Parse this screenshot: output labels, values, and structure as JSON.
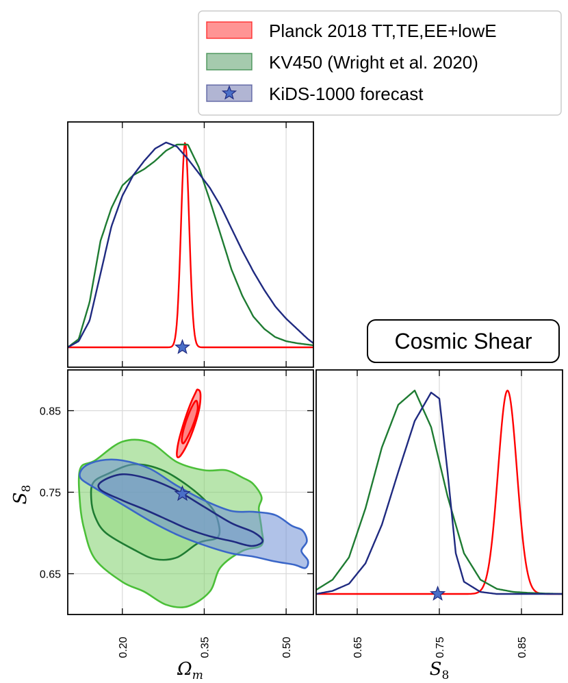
{
  "colors": {
    "planck": "#ff0000",
    "kv450_line": "#1e7b32",
    "kv450_fill": "#7dd06a",
    "kids_line": "#1f2a80",
    "kids_fill": "#6f8fd6",
    "kids_star": "#4a6fc8"
  },
  "chart_data": {
    "type": "corner",
    "title_box": "Cosmic Shear",
    "legend": [
      {
        "label": "Planck 2018 TT,TE,EE+lowE",
        "color": "#ff0000",
        "marker": "patch"
      },
      {
        "label": "KV450 (Wright et al. 2020)",
        "color": "#1e7b32",
        "marker": "patch"
      },
      {
        "label": "KiDS-1000 forecast",
        "color": "#1f2a80",
        "marker": "star"
      }
    ],
    "params": {
      "omega_m": {
        "label": "Ω",
        "sub": "m",
        "range": [
          0.1,
          0.55
        ],
        "ticks": [
          0.2,
          0.35,
          0.5
        ],
        "tick_labels": [
          "0.20",
          "0.35",
          "0.50"
        ]
      },
      "s8": {
        "label": "S",
        "sub": "8",
        "range": [
          0.6,
          0.9
        ],
        "ticks": [
          0.65,
          0.75,
          0.85
        ],
        "tick_labels": [
          "0.65",
          "0.75",
          "0.85"
        ]
      }
    },
    "fiducial": {
      "omega_m": 0.31,
      "s8": 0.748
    },
    "omega_m_marginal": [
      {
        "name": "Planck 2018 TT,TE,EE+lowE",
        "color": "#ff0000",
        "shape": "gaussian",
        "mean": 0.315,
        "sigma": 0.0074
      },
      {
        "name": "KV450 (Wright et al. 2020)",
        "color": "#1e7b32",
        "x": [
          0.1,
          0.12,
          0.14,
          0.16,
          0.18,
          0.2,
          0.22,
          0.24,
          0.26,
          0.28,
          0.3,
          0.32,
          0.34,
          0.36,
          0.38,
          0.4,
          0.42,
          0.44,
          0.46,
          0.48,
          0.5,
          0.52,
          0.55
        ],
        "y": [
          0.0,
          0.04,
          0.22,
          0.52,
          0.68,
          0.79,
          0.84,
          0.87,
          0.91,
          0.96,
          0.99,
          0.99,
          0.88,
          0.72,
          0.55,
          0.38,
          0.25,
          0.15,
          0.09,
          0.05,
          0.03,
          0.02,
          0.01
        ]
      },
      {
        "name": "KiDS-1000 forecast",
        "color": "#1f2a80",
        "x": [
          0.1,
          0.12,
          0.14,
          0.16,
          0.18,
          0.2,
          0.22,
          0.24,
          0.26,
          0.28,
          0.3,
          0.32,
          0.34,
          0.36,
          0.38,
          0.4,
          0.42,
          0.44,
          0.46,
          0.48,
          0.5,
          0.52,
          0.54,
          0.55
        ],
        "y": [
          0.0,
          0.03,
          0.13,
          0.36,
          0.59,
          0.74,
          0.84,
          0.91,
          0.97,
          1.0,
          0.98,
          0.92,
          0.85,
          0.78,
          0.69,
          0.58,
          0.47,
          0.37,
          0.28,
          0.2,
          0.14,
          0.09,
          0.04,
          0.02
        ]
      }
    ],
    "s8_marginal": [
      {
        "name": "Planck 2018 TT,TE,EE+lowE",
        "color": "#ff0000",
        "shape": "gaussian",
        "mean": 0.833,
        "sigma": 0.0115
      },
      {
        "name": "KV450 (Wright et al. 2020)",
        "color": "#1e7b32",
        "x": [
          0.6,
          0.62,
          0.64,
          0.66,
          0.68,
          0.7,
          0.72,
          0.74,
          0.76,
          0.78,
          0.8,
          0.82,
          0.84,
          0.86,
          0.88,
          0.9
        ],
        "y": [
          0.02,
          0.07,
          0.18,
          0.42,
          0.72,
          0.93,
          1.0,
          0.82,
          0.48,
          0.2,
          0.07,
          0.025,
          0.01,
          0.005,
          0.002,
          0.0
        ]
      },
      {
        "name": "KiDS-1000 forecast",
        "color": "#1f2a80",
        "x": [
          0.6,
          0.62,
          0.64,
          0.66,
          0.68,
          0.7,
          0.72,
          0.74,
          0.75,
          0.76,
          0.77,
          0.78,
          0.8,
          0.82,
          0.86,
          0.9
        ],
        "y": [
          0.0,
          0.015,
          0.05,
          0.15,
          0.34,
          0.6,
          0.85,
          0.99,
          0.96,
          0.6,
          0.2,
          0.06,
          0.01,
          0.0,
          0.0,
          0.0
        ]
      }
    ],
    "contours_2d": [
      {
        "name": "KV450 95%",
        "level": "95%",
        "fill": "#7dd06a",
        "stroke": "#4bbf38",
        "points": [
          [
            0.123,
            0.779
          ],
          [
            0.15,
            0.789
          ],
          [
            0.2,
            0.812
          ],
          [
            0.25,
            0.811
          ],
          [
            0.3,
            0.787
          ],
          [
            0.35,
            0.777
          ],
          [
            0.39,
            0.777
          ],
          [
            0.42,
            0.768
          ],
          [
            0.44,
            0.76
          ],
          [
            0.455,
            0.744
          ],
          [
            0.45,
            0.73
          ],
          [
            0.455,
            0.705
          ],
          [
            0.455,
            0.685
          ],
          [
            0.42,
            0.678
          ],
          [
            0.38,
            0.658
          ],
          [
            0.36,
            0.628
          ],
          [
            0.32,
            0.61
          ],
          [
            0.28,
            0.612
          ],
          [
            0.24,
            0.628
          ],
          [
            0.2,
            0.64
          ],
          [
            0.15,
            0.668
          ],
          [
            0.13,
            0.705
          ],
          [
            0.122,
            0.74
          ]
        ]
      },
      {
        "name": "KV450 68%",
        "level": "68%",
        "fill": "#7dd06a",
        "stroke": "#1e7b32",
        "points": [
          [
            0.147,
            0.762
          ],
          [
            0.175,
            0.773
          ],
          [
            0.22,
            0.784
          ],
          [
            0.27,
            0.778
          ],
          [
            0.32,
            0.758
          ],
          [
            0.36,
            0.734
          ],
          [
            0.375,
            0.715
          ],
          [
            0.375,
            0.695
          ],
          [
            0.34,
            0.688
          ],
          [
            0.3,
            0.67
          ],
          [
            0.26,
            0.668
          ],
          [
            0.22,
            0.68
          ],
          [
            0.17,
            0.7
          ],
          [
            0.15,
            0.72
          ],
          [
            0.143,
            0.742
          ]
        ]
      },
      {
        "name": "KiDS-1000 95%",
        "level": "95%",
        "fill": "#6f8fd6",
        "stroke": "#3a66c8",
        "points": [
          [
            0.13,
            0.781
          ],
          [
            0.16,
            0.789
          ],
          [
            0.2,
            0.789
          ],
          [
            0.25,
            0.779
          ],
          [
            0.3,
            0.758
          ],
          [
            0.35,
            0.74
          ],
          [
            0.4,
            0.727
          ],
          [
            0.44,
            0.726
          ],
          [
            0.48,
            0.722
          ],
          [
            0.51,
            0.709
          ],
          [
            0.53,
            0.703
          ],
          [
            0.538,
            0.69
          ],
          [
            0.528,
            0.678
          ],
          [
            0.54,
            0.666
          ],
          [
            0.535,
            0.657
          ],
          [
            0.515,
            0.661
          ],
          [
            0.48,
            0.665
          ],
          [
            0.44,
            0.671
          ],
          [
            0.4,
            0.675
          ],
          [
            0.35,
            0.685
          ],
          [
            0.3,
            0.698
          ],
          [
            0.25,
            0.715
          ],
          [
            0.2,
            0.735
          ],
          [
            0.15,
            0.755
          ],
          [
            0.123,
            0.768
          ]
        ]
      },
      {
        "name": "KiDS-1000 68%",
        "level": "68%",
        "fill": "#6f8fd6",
        "stroke": "#1f2a80",
        "points": [
          [
            0.162,
            0.763
          ],
          [
            0.2,
            0.772
          ],
          [
            0.25,
            0.766
          ],
          [
            0.3,
            0.752
          ],
          [
            0.35,
            0.732
          ],
          [
            0.4,
            0.712
          ],
          [
            0.44,
            0.701
          ],
          [
            0.457,
            0.69
          ],
          [
            0.437,
            0.684
          ],
          [
            0.4,
            0.69
          ],
          [
            0.36,
            0.696
          ],
          [
            0.32,
            0.705
          ],
          [
            0.28,
            0.717
          ],
          [
            0.24,
            0.729
          ],
          [
            0.2,
            0.74
          ],
          [
            0.16,
            0.753
          ]
        ]
      },
      {
        "name": "Planck 95%",
        "level": "95%",
        "fill": "#ff6060",
        "stroke": "#ff0000",
        "points": [
          [
            0.338,
            0.876
          ],
          [
            0.343,
            0.871
          ],
          [
            0.341,
            0.853
          ],
          [
            0.333,
            0.833
          ],
          [
            0.321,
            0.812
          ],
          [
            0.308,
            0.796
          ],
          [
            0.301,
            0.793
          ],
          [
            0.3,
            0.8
          ],
          [
            0.304,
            0.815
          ],
          [
            0.313,
            0.836
          ],
          [
            0.324,
            0.857
          ],
          [
            0.334,
            0.872
          ]
        ]
      },
      {
        "name": "Planck 68%",
        "level": "68%",
        "fill": "#ff4040",
        "stroke": "#ff0000",
        "points": [
          [
            0.336,
            0.862
          ],
          [
            0.338,
            0.852
          ],
          [
            0.332,
            0.837
          ],
          [
            0.322,
            0.821
          ],
          [
            0.312,
            0.81
          ],
          [
            0.309,
            0.815
          ],
          [
            0.313,
            0.829
          ],
          [
            0.321,
            0.845
          ],
          [
            0.33,
            0.858
          ]
        ]
      }
    ]
  }
}
